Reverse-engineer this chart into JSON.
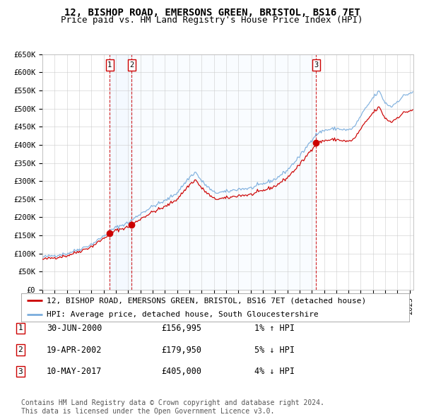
{
  "title": "12, BISHOP ROAD, EMERSONS GREEN, BRISTOL, BS16 7ET",
  "subtitle": "Price paid vs. HM Land Registry's House Price Index (HPI)",
  "ylim": [
    0,
    650000
  ],
  "yticks": [
    0,
    50000,
    100000,
    150000,
    200000,
    250000,
    300000,
    350000,
    400000,
    450000,
    500000,
    550000,
    600000,
    650000
  ],
  "ytick_labels": [
    "£0",
    "£50K",
    "£100K",
    "£150K",
    "£200K",
    "£250K",
    "£300K",
    "£350K",
    "£400K",
    "£450K",
    "£500K",
    "£550K",
    "£600K",
    "£650K"
  ],
  "xlim_start": 1995.0,
  "xlim_end": 2025.3,
  "sale_dates": [
    2000.5,
    2002.3,
    2017.36
  ],
  "sale_prices": [
    156995,
    179950,
    405000
  ],
  "red_line_color": "#cc0000",
  "blue_line_color": "#7aaddd",
  "dot_color": "#cc0000",
  "vline_color": "#cc0000",
  "shade_color": "#ddeeff",
  "grid_color": "#cccccc",
  "background_color": "#ffffff",
  "legend_line1": "12, BISHOP ROAD, EMERSONS GREEN, BRISTOL, BS16 7ET (detached house)",
  "legend_line2": "HPI: Average price, detached house, South Gloucestershire",
  "table_rows": [
    {
      "num": "1",
      "date": "30-JUN-2000",
      "price": "£156,995",
      "hpi": "1% ↑ HPI"
    },
    {
      "num": "2",
      "date": "19-APR-2002",
      "price": "£179,950",
      "hpi": "5% ↓ HPI"
    },
    {
      "num": "3",
      "date": "10-MAY-2017",
      "price": "£405,000",
      "hpi": "4% ↓ HPI"
    }
  ],
  "footer": "Contains HM Land Registry data © Crown copyright and database right 2024.\nThis data is licensed under the Open Government Licence v3.0.",
  "title_fontsize": 10,
  "subtitle_fontsize": 9,
  "tick_fontsize": 7.5,
  "legend_fontsize": 8,
  "table_fontsize": 8.5,
  "footer_fontsize": 7
}
